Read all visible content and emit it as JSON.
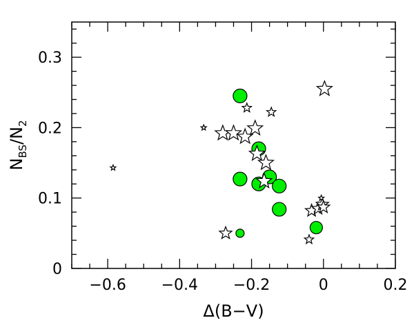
{
  "chart_data": {
    "type": "scatter",
    "title": "",
    "xlabel": "Δ(B−V)",
    "ylabel": {
      "main": "N",
      "sub1": "BS",
      "mid": "/N",
      "sub2": "2"
    },
    "xlim": [
      -0.7,
      0.2
    ],
    "ylim": [
      0,
      0.35
    ],
    "grid": false,
    "x_ticks": [
      {
        "value": -0.6,
        "label": "−0.6"
      },
      {
        "value": -0.4,
        "label": "−0.4"
      },
      {
        "value": -0.2,
        "label": "−0.2"
      },
      {
        "value": 0.0,
        "label": "0"
      },
      {
        "value": 0.2,
        "label": "0.2"
      }
    ],
    "y_ticks": [
      {
        "value": 0.0,
        "label": "0"
      },
      {
        "value": 0.1,
        "label": "0.1"
      },
      {
        "value": 0.2,
        "label": "0.2"
      },
      {
        "value": 0.3,
        "label": "0.3"
      }
    ],
    "series": [
      {
        "marker": "circle",
        "color": "#00ee00",
        "points": [
          {
            "x": -0.232,
            "y": 0.245,
            "size": "large"
          },
          {
            "x": -0.18,
            "y": 0.17,
            "size": "large"
          },
          {
            "x": -0.232,
            "y": 0.127,
            "size": "large"
          },
          {
            "x": -0.18,
            "y": 0.12,
            "size": "large"
          },
          {
            "x": -0.15,
            "y": 0.13,
            "size": "large"
          },
          {
            "x": -0.123,
            "y": 0.117,
            "size": "large"
          },
          {
            "x": -0.123,
            "y": 0.084,
            "size": "large"
          },
          {
            "x": -0.02,
            "y": 0.058,
            "size": "medium"
          },
          {
            "x": -0.232,
            "y": 0.05,
            "size": "small"
          }
        ]
      },
      {
        "marker": "star",
        "color": "#ffffff",
        "points": [
          {
            "x": -0.585,
            "y": 0.143,
            "size": "xsmall"
          },
          {
            "x": -0.333,
            "y": 0.2,
            "size": "xsmall"
          },
          {
            "x": -0.28,
            "y": 0.192,
            "size": "large"
          },
          {
            "x": -0.25,
            "y": 0.192,
            "size": "large"
          },
          {
            "x": -0.218,
            "y": 0.187,
            "size": "large"
          },
          {
            "x": -0.19,
            "y": 0.199,
            "size": "large"
          },
          {
            "x": -0.185,
            "y": 0.163,
            "size": "large"
          },
          {
            "x": -0.16,
            "y": 0.15,
            "size": "large"
          },
          {
            "x": -0.165,
            "y": 0.124,
            "size": "large"
          },
          {
            "x": -0.213,
            "y": 0.228,
            "size": "small"
          },
          {
            "x": -0.145,
            "y": 0.222,
            "size": "small"
          },
          {
            "x": 0.003,
            "y": 0.255,
            "size": "large"
          },
          {
            "x": -0.272,
            "y": 0.05,
            "size": "medium"
          },
          {
            "x": -0.04,
            "y": 0.041,
            "size": "small"
          },
          {
            "x": -0.033,
            "y": 0.082,
            "size": "medium"
          },
          {
            "x": -0.015,
            "y": 0.085,
            "size": "medium"
          },
          {
            "x": -0.003,
            "y": 0.091,
            "size": "medium"
          },
          {
            "x": -0.006,
            "y": 0.1,
            "size": "xsmall"
          },
          {
            "x": 0.0,
            "y": 0.087,
            "size": "medium"
          }
        ]
      }
    ]
  }
}
